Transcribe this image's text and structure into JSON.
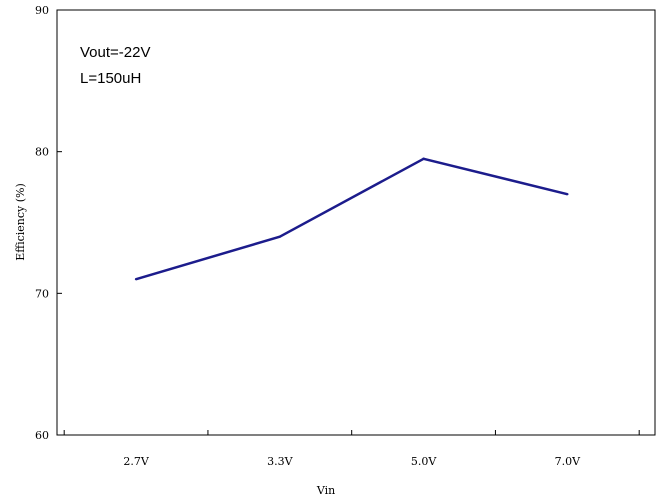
{
  "chart_data": {
    "type": "line",
    "categories": [
      "2.7V",
      "3.3V",
      "5.0V",
      "7.0V"
    ],
    "series": [
      {
        "values": [
          71,
          74,
          79.5,
          77
        ],
        "color": "#1c1c8c"
      }
    ],
    "xlabel": "Vin",
    "ylabel": "Efficiency (%)",
    "ylim": [
      60,
      90
    ],
    "yticks": [
      60,
      70,
      80,
      90
    ],
    "grid": false,
    "annotations": [
      "Vout=-22V",
      "L=150uH"
    ]
  }
}
